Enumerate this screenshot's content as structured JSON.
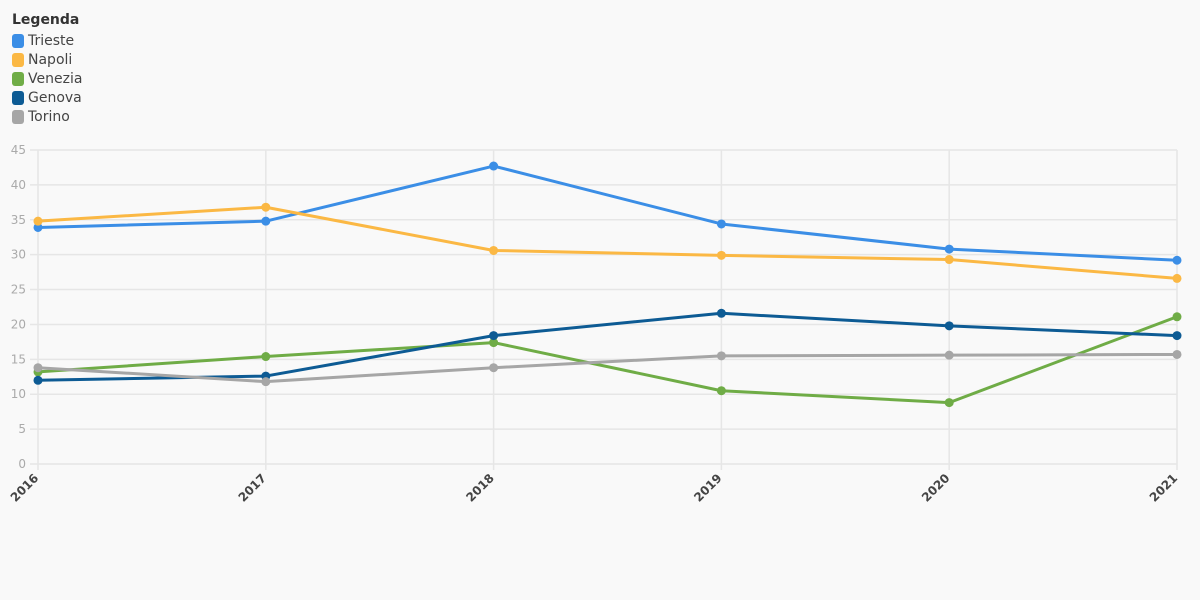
{
  "legend": {
    "title": "Legenda"
  },
  "chart_data": {
    "type": "line",
    "title": "",
    "xlabel": "",
    "ylabel": "",
    "categories": [
      "2016",
      "2017",
      "2018",
      "2019",
      "2020",
      "2021"
    ],
    "ylim": [
      0,
      45
    ],
    "yticks": [
      0,
      5,
      10,
      15,
      20,
      25,
      30,
      35,
      40,
      45
    ],
    "grid": true,
    "legend_position": "top-left",
    "series": [
      {
        "name": "Trieste",
        "color": "#3b8ee6",
        "values": [
          33.9,
          34.8,
          42.7,
          34.4,
          30.8,
          29.2
        ]
      },
      {
        "name": "Napoli",
        "color": "#fbb844",
        "values": [
          34.8,
          36.8,
          30.6,
          29.9,
          29.3,
          26.6
        ]
      },
      {
        "name": "Venezia",
        "color": "#6fac46",
        "values": [
          13.2,
          15.4,
          17.4,
          10.5,
          8.8,
          21.1
        ]
      },
      {
        "name": "Genova",
        "color": "#0d5b94",
        "values": [
          12.0,
          12.6,
          18.4,
          21.6,
          19.8,
          18.4
        ]
      },
      {
        "name": "Torino",
        "color": "#a6a6a6",
        "values": [
          13.8,
          11.8,
          13.8,
          15.5,
          15.6,
          15.7
        ]
      }
    ]
  }
}
